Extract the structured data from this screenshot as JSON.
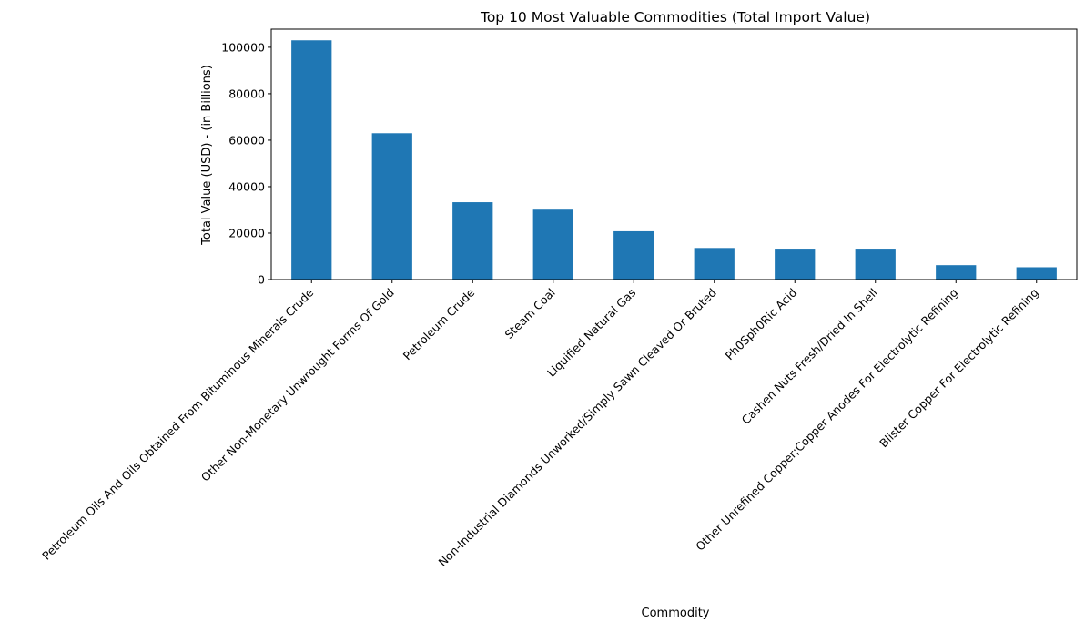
{
  "chart_data": {
    "type": "bar",
    "title": "Top 10 Most Valuable Commodities (Total Import Value)",
    "xlabel": "Commodity",
    "ylabel": "Total Value (USD) - (in Billions)",
    "ylim": [
      0,
      107800
    ],
    "yticks": [
      0,
      20000,
      40000,
      60000,
      80000,
      100000
    ],
    "grid": false,
    "legend": "none",
    "bar_color": "#1f77b4",
    "categories": [
      "Petroleum Oils And Oils Obtained From Bituminous Minerals Crude",
      "Other Non-Monetary Unwrought Forms Of Gold",
      "Petroleum Crude",
      "Steam Coal",
      "Liquified Natural Gas",
      "Non-Industrial Diamonds Unworked/Simply Sawn Cleaved Or Bruted",
      "Ph0Sph0Ric Acid",
      "Cashen Nuts Fresh/Dried In Shell",
      "Other Unrefined Copper;Copper Anodes For Electrolytic Refining",
      "Blister Copper For Electrolytic Refining"
    ],
    "values": [
      103000,
      63000,
      33300,
      30100,
      20800,
      13600,
      13300,
      13300,
      6200,
      5300
    ]
  }
}
